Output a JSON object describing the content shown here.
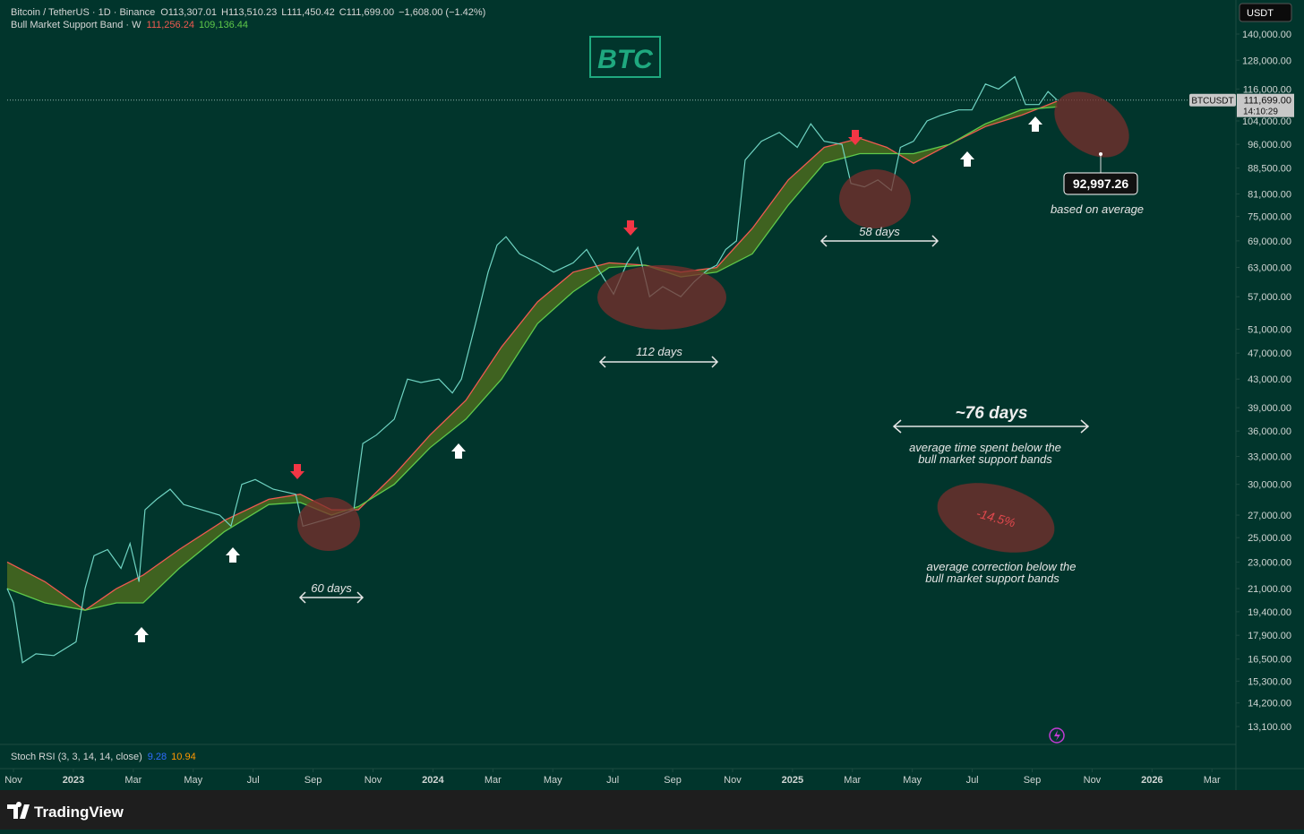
{
  "header": {
    "symbol": "Bitcoin / TetherUS · 1D · Binance",
    "open": "O113,307.01",
    "high": "H113,510.23",
    "low": "L111,450.42",
    "close": "C111,699.00",
    "change": "−1,608.00 (−1.42%)"
  },
  "indicator": {
    "name": "Bull Market Support Band · W",
    "upper_last": "111,256.24",
    "lower_last": "109,136.44"
  },
  "stoch": {
    "name": "Stoch RSI (3, 3, 14, 14, close)",
    "k": "9.28",
    "d": "10.94"
  },
  "axis": {
    "currency": "USDT",
    "symbol": "BTCUSDT",
    "last_price": "111,699.00",
    "countdown": "14:10:29"
  },
  "chart": {
    "type": "line",
    "log_scale": true,
    "ylim": [
      12360,
      157300
    ],
    "yticks": [
      {
        "value": 140000,
        "label": "140,000.00"
      },
      {
        "value": 128000,
        "label": "128,000.00"
      },
      {
        "value": 116000,
        "label": "116,000.00"
      },
      {
        "value": 104000,
        "label": "104,000.00"
      },
      {
        "value": 96000,
        "label": "96,000.00"
      },
      {
        "value": 88500,
        "label": "88,500.00"
      },
      {
        "value": 81000,
        "label": "81,000.00"
      },
      {
        "value": 75000,
        "label": "75,000.00"
      },
      {
        "value": 69000,
        "label": "69,000.00"
      },
      {
        "value": 63000,
        "label": "63,000.00"
      },
      {
        "value": 57000,
        "label": "57,000.00"
      },
      {
        "value": 51000,
        "label": "51,000.00"
      },
      {
        "value": 47000,
        "label": "47,000.00"
      },
      {
        "value": 43000,
        "label": "43,000.00"
      },
      {
        "value": 39000,
        "label": "39,000.00"
      },
      {
        "value": 36000,
        "label": "36,000.00"
      },
      {
        "value": 33000,
        "label": "33,000.00"
      },
      {
        "value": 30000,
        "label": "30,000.00"
      },
      {
        "value": 27000,
        "label": "27,000.00"
      },
      {
        "value": 25000,
        "label": "25,000.00"
      },
      {
        "value": 23000,
        "label": "23,000.00"
      },
      {
        "value": 21000,
        "label": "21,000.00"
      },
      {
        "value": 19400,
        "label": "19,400.00"
      },
      {
        "value": 17900,
        "label": "17,900.00"
      },
      {
        "value": 16500,
        "label": "16,500.00"
      },
      {
        "value": 15300,
        "label": "15,300.00"
      },
      {
        "value": 14200,
        "label": "14,200.00"
      },
      {
        "value": 13100,
        "label": "13,100.00"
      }
    ],
    "xlim": [
      -0.21,
      40.8
    ],
    "xticks": [
      {
        "value": 0,
        "label": "Nov"
      },
      {
        "value": 2,
        "label": "2023"
      },
      {
        "value": 4,
        "label": "Mar"
      },
      {
        "value": 6,
        "label": "May"
      },
      {
        "value": 8,
        "label": "Jul"
      },
      {
        "value": 10,
        "label": "Sep"
      },
      {
        "value": 12,
        "label": "Nov"
      },
      {
        "value": 14,
        "label": "2024"
      },
      {
        "value": 16,
        "label": "Mar"
      },
      {
        "value": 18,
        "label": "May"
      },
      {
        "value": 20,
        "label": "Jul"
      },
      {
        "value": 22,
        "label": "Sep"
      },
      {
        "value": 24,
        "label": "Nov"
      },
      {
        "value": 26,
        "label": "2025"
      },
      {
        "value": 28,
        "label": "Mar"
      },
      {
        "value": 30,
        "label": "May"
      },
      {
        "value": 32,
        "label": "Jul"
      },
      {
        "value": 34,
        "label": "Sep"
      },
      {
        "value": 36,
        "label": "Nov"
      },
      {
        "value": 38,
        "label": "2026"
      },
      {
        "value": 40,
        "label": "Mar"
      }
    ],
    "price": {
      "color": "#6fd3c2",
      "x": [
        -0.21,
        0,
        0.3,
        0.75,
        1.35,
        2.09,
        2.39,
        2.69,
        3.14,
        3.59,
        3.89,
        4.19,
        4.39,
        4.78,
        5.23,
        5.68,
        6.28,
        6.88,
        7.26,
        7.62,
        8.07,
        8.67,
        9.42,
        9.66,
        10.31,
        10.91,
        11.36,
        11.66,
        12.11,
        12.71,
        13.15,
        13.6,
        14.2,
        14.65,
        14.95,
        15.4,
        15.84,
        16.14,
        16.44,
        16.89,
        17.49,
        18.03,
        18.68,
        19.13,
        19.58,
        20.03,
        20.48,
        20.84,
        21.23,
        21.67,
        22.27,
        22.72,
        23.17,
        23.47,
        23.77,
        24.13,
        24.42,
        24.96,
        25.56,
        26.16,
        26.61,
        27.06,
        27.65,
        27.95,
        28.4,
        28.85,
        29.3,
        29.6,
        30.04,
        30.49,
        30.94,
        31.54,
        31.99,
        32.44,
        32.88,
        33.42,
        33.78,
        34.23,
        34.53,
        34.83
      ],
      "values": [
        21000,
        20000,
        16300,
        16800,
        16700,
        17500,
        21000,
        23500,
        24000,
        22500,
        24500,
        21500,
        27500,
        28500,
        29500,
        28000,
        27500,
        27000,
        26000,
        30000,
        30500,
        29500,
        29000,
        26000,
        26500,
        27000,
        27500,
        34500,
        35500,
        37500,
        43000,
        42500,
        43000,
        41000,
        43000,
        51500,
        62000,
        68000,
        70000,
        66000,
        64000,
        62000,
        64000,
        67000,
        62000,
        57500,
        64000,
        67500,
        57000,
        59000,
        57000,
        60000,
        62500,
        63500,
        67000,
        69000,
        91000,
        97000,
        100000,
        95000,
        103000,
        97000,
        96000,
        84000,
        83000,
        85000,
        82000,
        95000,
        97000,
        104000,
        106000,
        108000,
        108000,
        118000,
        116000,
        121000,
        110000,
        110000,
        115000,
        111699
      ]
    },
    "band": {
      "x": [
        -0.21,
        1.05,
        2.39,
        3.44,
        4.33,
        5.53,
        7.03,
        8.52,
        9.57,
        10.61,
        11.51,
        12.71,
        13.9,
        15.1,
        16.29,
        17.49,
        18.68,
        19.88,
        21.08,
        22.27,
        23.47,
        24.66,
        25.86,
        27.06,
        28.25,
        29.15,
        30.04,
        31.24,
        32.44,
        33.63,
        34.83
      ],
      "upper": {
        "color": "#f05a50",
        "values": [
          23000,
          21500,
          19500,
          21000,
          22000,
          24000,
          26500,
          28500,
          29000,
          27500,
          27500,
          31000,
          35500,
          40000,
          48000,
          56000,
          62000,
          64000,
          63500,
          62000,
          63000,
          72000,
          85000,
          95000,
          98000,
          95000,
          90000,
          96000,
          102000,
          106000,
          111256.24
        ]
      },
      "lower": {
        "color": "#5fc94a",
        "values": [
          21000,
          20000,
          19500,
          20000,
          20000,
          22500,
          25500,
          28000,
          28200,
          27000,
          27800,
          30000,
          34000,
          37500,
          43000,
          52000,
          58000,
          63000,
          63500,
          61000,
          62000,
          66000,
          78000,
          90000,
          93000,
          93000,
          93000,
          96000,
          103000,
          108000,
          109136.44
        ]
      },
      "fill": "#4a6a1f"
    }
  },
  "annotations": {
    "title": "BTC",
    "d60": "60 days",
    "d112": "112 days",
    "d58": "58 days",
    "avg_days": "~76 days",
    "avg_days_line1": "average time spent below the",
    "avg_days_line2": "bull market support bands",
    "avg_correction": "-14.5%",
    "corr_line1": "average correction below the",
    "corr_line2": "bull market support bands",
    "target": "92,997.26",
    "target_note": "based on average"
  },
  "footer": {
    "brand": "TradingView"
  }
}
